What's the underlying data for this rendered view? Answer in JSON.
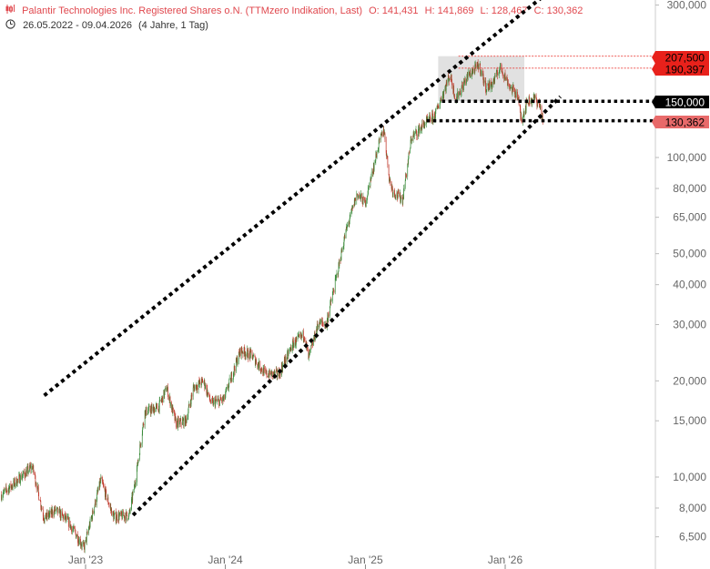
{
  "header": {
    "instrument_icon": "candlestick-icon",
    "title": "Palantir Technologies Inc. Registered Shares o.N. (TTMzero Indikation, Last)",
    "open": "O: 141,431",
    "high": "H: 141,869",
    "low": "L: 128,467",
    "close": "C: 130,362",
    "clock_icon": "clock-icon",
    "range": "26.05.2022 - 09.04.2026",
    "period": "(4 Jahre, 1 Tag)"
  },
  "colors": {
    "up": "#3a8a3a",
    "down": "#c0392b",
    "title": "#e0484e",
    "level_red": "#e8211b",
    "last_price": "#e86a6a",
    "level_black": "#000000",
    "zone": "#d9d9d9"
  },
  "chart_data": {
    "type": "candlestick",
    "scale": "log",
    "x_ticks": [
      {
        "label": "Jan '23",
        "date": "2023-01-01"
      },
      {
        "label": "Jan '24",
        "date": "2024-01-01"
      },
      {
        "label": "Jan '25",
        "date": "2025-01-01"
      },
      {
        "label": "Jan '26",
        "date": "2026-01-01"
      }
    ],
    "y_ticks": [
      {
        "label": "300,000",
        "value": 300000
      },
      {
        "label": "100,000",
        "value": 100000
      },
      {
        "label": "80,000",
        "value": 80000
      },
      {
        "label": "65,000",
        "value": 65000
      },
      {
        "label": "50,000",
        "value": 50000
      },
      {
        "label": "40,000",
        "value": 40000
      },
      {
        "label": "30,000",
        "value": 30000
      },
      {
        "label": "20,000",
        "value": 20000
      },
      {
        "label": "15,000",
        "value": 15000
      },
      {
        "label": "10,000",
        "value": 10000
      },
      {
        "label": "8,000",
        "value": 8000
      },
      {
        "label": "6,500",
        "value": 6500
      }
    ],
    "price_path": [
      [
        "2022-05-26",
        8.8
      ],
      [
        "2022-07-01",
        9.6
      ],
      [
        "2022-08-15",
        10.8
      ],
      [
        "2022-09-15",
        7.4
      ],
      [
        "2022-10-15",
        7.9
      ],
      [
        "2022-11-15",
        7.3
      ],
      [
        "2022-12-28",
        6.0
      ],
      [
        "2023-02-10",
        9.8
      ],
      [
        "2023-03-15",
        7.5
      ],
      [
        "2023-04-25",
        7.6
      ],
      [
        "2023-05-10",
        9.6
      ],
      [
        "2023-06-05",
        16.0
      ],
      [
        "2023-07-10",
        16.5
      ],
      [
        "2023-08-01",
        19.0
      ],
      [
        "2023-08-25",
        14.7
      ],
      [
        "2023-09-20",
        15.0
      ],
      [
        "2023-10-10",
        19.0
      ],
      [
        "2023-11-05",
        20.0
      ],
      [
        "2023-11-25",
        17.0
      ],
      [
        "2023-12-28",
        17.5
      ],
      [
        "2024-02-10",
        25.0
      ],
      [
        "2024-03-10",
        24.0
      ],
      [
        "2024-04-15",
        21.0
      ],
      [
        "2024-05-20",
        21.0
      ],
      [
        "2024-06-25",
        26.0
      ],
      [
        "2024-07-25",
        28.0
      ],
      [
        "2024-08-05",
        23.5
      ],
      [
        "2024-09-01",
        30.5
      ],
      [
        "2024-09-20",
        30.0
      ],
      [
        "2024-10-15",
        41.0
      ],
      [
        "2024-11-10",
        58.0
      ],
      [
        "2024-12-10",
        77.0
      ],
      [
        "2024-12-31",
        72.0
      ],
      [
        "2025-02-05",
        110.0
      ],
      [
        "2025-02-18",
        123.0
      ],
      [
        "2025-03-05",
        85.0
      ],
      [
        "2025-03-15",
        78.0
      ],
      [
        "2025-04-08",
        74.0
      ],
      [
        "2025-05-01",
        115.0
      ],
      [
        "2025-06-05",
        128.0
      ],
      [
        "2025-07-01",
        135.0
      ],
      [
        "2025-08-10",
        182.0
      ],
      [
        "2025-08-25",
        152.0
      ],
      [
        "2025-09-25",
        180.0
      ],
      [
        "2025-10-25",
        195.0
      ],
      [
        "2025-11-12",
        165.0
      ],
      [
        "2025-11-28",
        170.0
      ],
      [
        "2025-12-20",
        192.0
      ],
      [
        "2026-01-15",
        165.0
      ],
      [
        "2026-02-01",
        158.0
      ],
      [
        "2026-02-12",
        132.0
      ],
      [
        "2026-02-28",
        150.0
      ],
      [
        "2026-03-20",
        153.0
      ],
      [
        "2026-04-02",
        145.0
      ],
      [
        "2026-04-09",
        130.362
      ]
    ],
    "levels": [
      {
        "label": "207,500",
        "value": 207.5,
        "style": "thin-red",
        "badge": "red"
      },
      {
        "label": "190,397",
        "value": 190.397,
        "style": "thin-red",
        "badge": "red"
      },
      {
        "label": "150,000",
        "value": 150.0,
        "style": "dotted-black",
        "badge": "black"
      },
      {
        "label": "130,362",
        "value": 130.362,
        "style": "dotted-black",
        "badge": "last"
      }
    ],
    "zone": {
      "from": "2025-07-10",
      "to": "2026-02-20",
      "low": 150.0,
      "high": 207.5
    },
    "trend_channel": {
      "upper": [
        [
          "2022-09-15",
          18.0
        ],
        [
          "2026-04-25",
          330.0
        ]
      ],
      "lower": [
        [
          "2023-05-05",
          7.6
        ],
        [
          "2026-05-25",
          155.0
        ]
      ]
    }
  }
}
